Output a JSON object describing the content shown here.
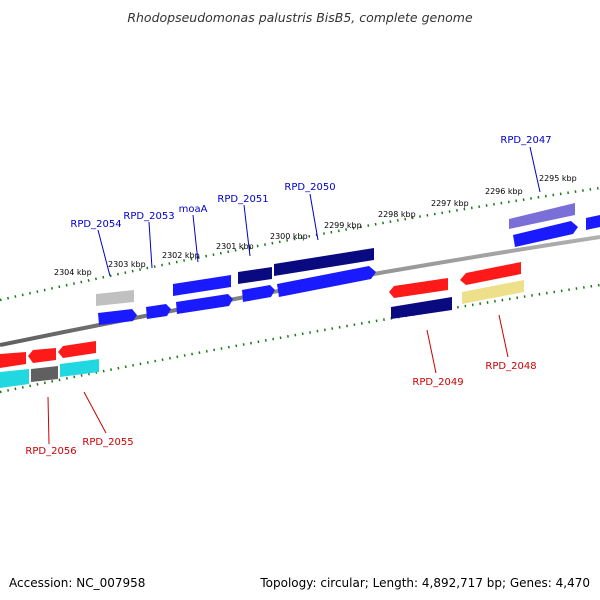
{
  "title": "Rhodopseudomonas palustris BisB5, complete genome",
  "footer": {
    "accession": "Accession: NC_007958",
    "summary": "Topology: circular; Length: 4,892,717 bp; Genes: 4,470"
  },
  "kbp_labels": [
    "2304 kbp",
    "2303 kbp",
    "2302 kbp",
    "2301 kbp",
    "2300 kbp",
    "2299 kbp",
    "2298 kbp",
    "2297 kbp",
    "2296 kbp",
    "2295 kbp"
  ],
  "forward_genes": [
    "RPD_2054",
    "RPD_2053",
    "moaA",
    "RPD_2051",
    "RPD_2050",
    "RPD_2047"
  ],
  "reverse_genes": [
    "RPD_2056",
    "RPD_2055",
    "RPD_2049",
    "RPD_2048"
  ],
  "colors": {
    "forward_label": "#0000cc",
    "reverse_label": "#cc0000",
    "tick": "#1a7a1a",
    "backbone": "#808080",
    "blue": "#1a1aff",
    "navy": "#0a0a80",
    "red": "#ff1a1a",
    "gray": "#c0c0c0",
    "darkgray": "#606060",
    "cyan": "#22d8e0",
    "yellow": "#eee08a",
    "lavender": "#7a6ed8"
  }
}
